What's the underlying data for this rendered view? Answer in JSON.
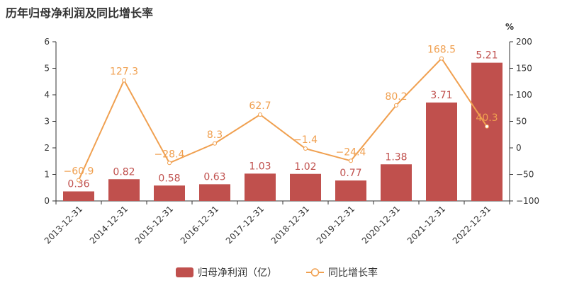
{
  "chart_data": {
    "type": "bar+line",
    "title": "历年归母净利润及同比增长率",
    "categories": [
      "2013-12-31",
      "2014-12-31",
      "2015-12-31",
      "2016-12-31",
      "2017-12-31",
      "2018-12-31",
      "2019-12-31",
      "2020-12-31",
      "2021-12-31",
      "2022-12-31"
    ],
    "series": [
      {
        "name": "归母净利润（亿）",
        "type": "bar",
        "axis": "left",
        "values": [
          0.36,
          0.82,
          0.58,
          0.63,
          1.03,
          1.02,
          0.77,
          1.38,
          3.71,
          5.21
        ],
        "labels": [
          "0.36",
          "0.82",
          "0.58",
          "0.63",
          "1.03",
          "1.02",
          "0.77",
          "1.38",
          "3.71",
          "5.21"
        ]
      },
      {
        "name": "同比增长率",
        "type": "line",
        "axis": "right",
        "values": [
          -60.9,
          127.3,
          -28.4,
          8.3,
          62.7,
          -1.4,
          -24.4,
          80.2,
          168.5,
          40.3
        ],
        "labels": [
          "−60.9",
          "127.3",
          "−28.4",
          "8.3",
          "62.7",
          "−1.4",
          "−24.4",
          "80.2",
          "168.5",
          "40.3"
        ]
      }
    ],
    "left_axis": {
      "min": 0,
      "max": 6,
      "ticks": [
        "0",
        "1",
        "2",
        "3",
        "4",
        "5",
        "6"
      ]
    },
    "right_axis": {
      "min": -100,
      "max": 200,
      "unit": "%",
      "ticks": [
        "−100",
        "−50",
        "0",
        "50",
        "100",
        "150",
        "200"
      ]
    },
    "grid": false,
    "legend_position": "bottom-center",
    "colors": {
      "bar": "#c0504d",
      "line": "#f0a050",
      "axis": "#333333"
    }
  }
}
